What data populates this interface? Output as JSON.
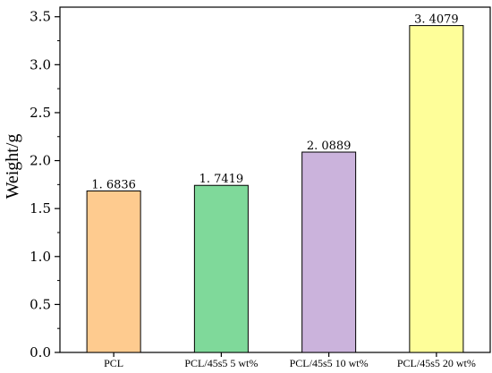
{
  "chart_data": {
    "type": "bar",
    "title": "",
    "xlabel": "",
    "ylabel": "Weight/g",
    "ylim": [
      0,
      3.6
    ],
    "yticks": [
      "0.0",
      "0.5",
      "1.0",
      "1.5",
      "2.0",
      "2.5",
      "3.0",
      "3.5"
    ],
    "categories": [
      "PCL",
      "PCL/45s5 5 wt%",
      "PCL/45s5 10 wt%",
      "PCL/45s5 20 wt%"
    ],
    "values": [
      1.6836,
      1.7419,
      2.0889,
      3.4079
    ],
    "data_labels": [
      "1. 6836",
      "1. 7419",
      "2. 0889",
      "3. 4079"
    ],
    "colors": [
      "#FECB8F",
      "#7FD99A",
      "#CBB3DC",
      "#FEFE99"
    ],
    "grid": false,
    "legend": "none"
  }
}
